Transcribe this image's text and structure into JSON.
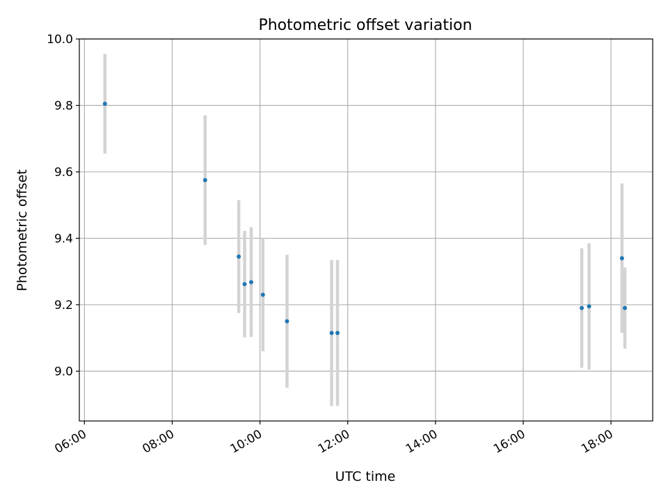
{
  "chart_data": {
    "type": "scatter",
    "title": "Photometric offset variation",
    "xlabel": "UTC time",
    "ylabel": "Photometric offset",
    "x_axis": "time",
    "xlim": [
      "05:53",
      "18:57"
    ],
    "ylim": [
      8.85,
      10.0
    ],
    "xticks": [
      "06:00",
      "08:00",
      "10:00",
      "12:00",
      "14:00",
      "16:00",
      "18:00"
    ],
    "yticks": [
      "9.0",
      "9.2",
      "9.4",
      "9.6",
      "9.8",
      "10.0"
    ],
    "grid": true,
    "colors": {
      "point": "#1f77b4",
      "errorbar": "#d3d3d3"
    },
    "points": [
      {
        "time": "06:28",
        "y": 9.805,
        "err": 0.15
      },
      {
        "time": "08:45",
        "y": 9.575,
        "err": 0.195
      },
      {
        "time": "09:31",
        "y": 9.345,
        "err": 0.17
      },
      {
        "time": "09:39",
        "y": 9.262,
        "err": 0.16
      },
      {
        "time": "09:48",
        "y": 9.268,
        "err": 0.165
      },
      {
        "time": "10:04",
        "y": 9.23,
        "err": 0.17
      },
      {
        "time": "10:37",
        "y": 9.15,
        "err": 0.2
      },
      {
        "time": "11:38",
        "y": 9.115,
        "err": 0.22
      },
      {
        "time": "11:46",
        "y": 9.115,
        "err": 0.22
      },
      {
        "time": "17:20",
        "y": 9.19,
        "err": 0.18
      },
      {
        "time": "17:30",
        "y": 9.195,
        "err": 0.19
      },
      {
        "time": "18:15",
        "y": 9.34,
        "err": 0.225
      },
      {
        "time": "18:19",
        "y": 9.19,
        "err": 0.122
      }
    ]
  }
}
